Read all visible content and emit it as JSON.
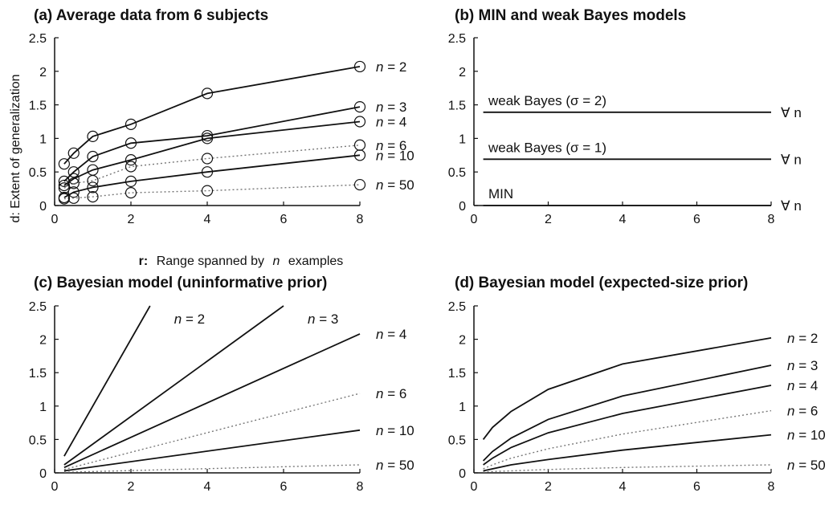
{
  "figure": {
    "xlabel_prefix": "r:",
    "xlabel_main": "Range spanned by",
    "xlabel_n": "n",
    "xlabel_tail": "examples",
    "ylabel": "d: Extent of generalization"
  },
  "chart_data": [
    {
      "type": "line",
      "title": "(a) Average data from 6 subjects",
      "x": [
        0.25,
        0.5,
        1,
        2,
        4,
        8
      ],
      "xlim": [
        0,
        8
      ],
      "ylim": [
        0,
        2.5
      ],
      "xticks": [
        "0",
        "2",
        "4",
        "6",
        "8"
      ],
      "yticks": [
        "0",
        "0.5",
        "1",
        "1.5",
        "2",
        "2.5"
      ],
      "markers": "circle",
      "series": [
        {
          "name": "n = 2",
          "values": [
            0.62,
            0.78,
            1.03,
            1.21,
            1.67,
            2.07
          ],
          "style": "solid"
        },
        {
          "name": "n = 3",
          "values": [
            0.36,
            0.5,
            0.73,
            0.93,
            1.04,
            1.47
          ],
          "style": "solid"
        },
        {
          "name": "n = 4",
          "values": [
            0.3,
            0.4,
            0.53,
            0.68,
            1.0,
            1.25
          ],
          "style": "solid"
        },
        {
          "name": "n = 6",
          "values": [
            0.26,
            0.33,
            0.37,
            0.58,
            0.7,
            0.9
          ],
          "style": "dotted"
        },
        {
          "name": "n = 10",
          "values": [
            0.12,
            0.2,
            0.27,
            0.36,
            0.5,
            0.75
          ],
          "style": "solid"
        },
        {
          "name": "n = 50",
          "values": [
            0.1,
            0.11,
            0.13,
            0.19,
            0.22,
            0.31
          ],
          "style": "dotted"
        }
      ]
    },
    {
      "type": "line",
      "title": "(b) MIN and weak Bayes models",
      "x": [
        0.25,
        8
      ],
      "xlim": [
        0,
        8
      ],
      "ylim": [
        0,
        2.5
      ],
      "xticks": [
        "0",
        "2",
        "4",
        "6",
        "8"
      ],
      "yticks": [
        "0",
        "0.5",
        "1",
        "1.5",
        "2",
        "2.5"
      ],
      "series": [
        {
          "name": "weak Bayes (σ = 2)",
          "values": [
            1.39,
            1.39
          ],
          "style": "solid",
          "suffix": "∀ n"
        },
        {
          "name": "weak Bayes (σ = 1)",
          "values": [
            0.69,
            0.69
          ],
          "style": "solid",
          "suffix": "∀ n"
        },
        {
          "name": "MIN",
          "values": [
            0.0,
            0.0
          ],
          "style": "solid",
          "suffix": "∀ n"
        }
      ]
    },
    {
      "type": "line",
      "title": "(c) Bayesian model (uninformative prior)",
      "xlim": [
        0,
        8
      ],
      "ylim": [
        0,
        2.5
      ],
      "xticks": [
        "0",
        "2",
        "4",
        "6",
        "8"
      ],
      "yticks": [
        "0",
        "0.5",
        "1",
        "1.5",
        "2",
        "2.5"
      ],
      "series": [
        {
          "name": "n = 2",
          "x": [
            0.25,
            2.5
          ],
          "values": [
            0.25,
            2.5
          ],
          "style": "solid"
        },
        {
          "name": "n = 3",
          "x": [
            0.25,
            6.0
          ],
          "values": [
            0.12,
            2.5
          ],
          "style": "solid"
        },
        {
          "name": "n = 4",
          "x": [
            0.25,
            8
          ],
          "values": [
            0.08,
            2.08
          ],
          "style": "solid"
        },
        {
          "name": "n = 6",
          "x": [
            0.25,
            8
          ],
          "values": [
            0.05,
            1.19
          ],
          "style": "dotted"
        },
        {
          "name": "n = 10",
          "x": [
            0.25,
            8
          ],
          "values": [
            0.03,
            0.64
          ],
          "style": "solid"
        },
        {
          "name": "n = 50",
          "x": [
            0.25,
            8
          ],
          "values": [
            0.01,
            0.12
          ],
          "style": "dotted"
        }
      ]
    },
    {
      "type": "line",
      "title": "(d) Bayesian model (expected-size prior)",
      "x": [
        0.25,
        0.5,
        1,
        2,
        4,
        8
      ],
      "xlim": [
        0,
        8
      ],
      "ylim": [
        0,
        2.5
      ],
      "xticks": [
        "0",
        "2",
        "4",
        "6",
        "8"
      ],
      "yticks": [
        "0",
        "0.5",
        "1",
        "1.5",
        "2",
        "2.5"
      ],
      "series": [
        {
          "name": "n = 2",
          "values": [
            0.5,
            0.68,
            0.92,
            1.25,
            1.63,
            2.02
          ],
          "style": "solid"
        },
        {
          "name": "n = 3",
          "values": [
            0.18,
            0.32,
            0.52,
            0.8,
            1.15,
            1.61
          ],
          "style": "solid"
        },
        {
          "name": "n = 4",
          "values": [
            0.12,
            0.22,
            0.38,
            0.6,
            0.89,
            1.31
          ],
          "style": "solid"
        },
        {
          "name": "n = 6",
          "values": [
            0.06,
            0.12,
            0.22,
            0.36,
            0.58,
            0.93
          ],
          "style": "dotted"
        },
        {
          "name": "n = 10",
          "values": [
            0.03,
            0.06,
            0.12,
            0.2,
            0.34,
            0.57
          ],
          "style": "solid"
        },
        {
          "name": "n = 50",
          "values": [
            0.01,
            0.02,
            0.03,
            0.05,
            0.08,
            0.12
          ],
          "style": "dotted"
        }
      ]
    }
  ]
}
